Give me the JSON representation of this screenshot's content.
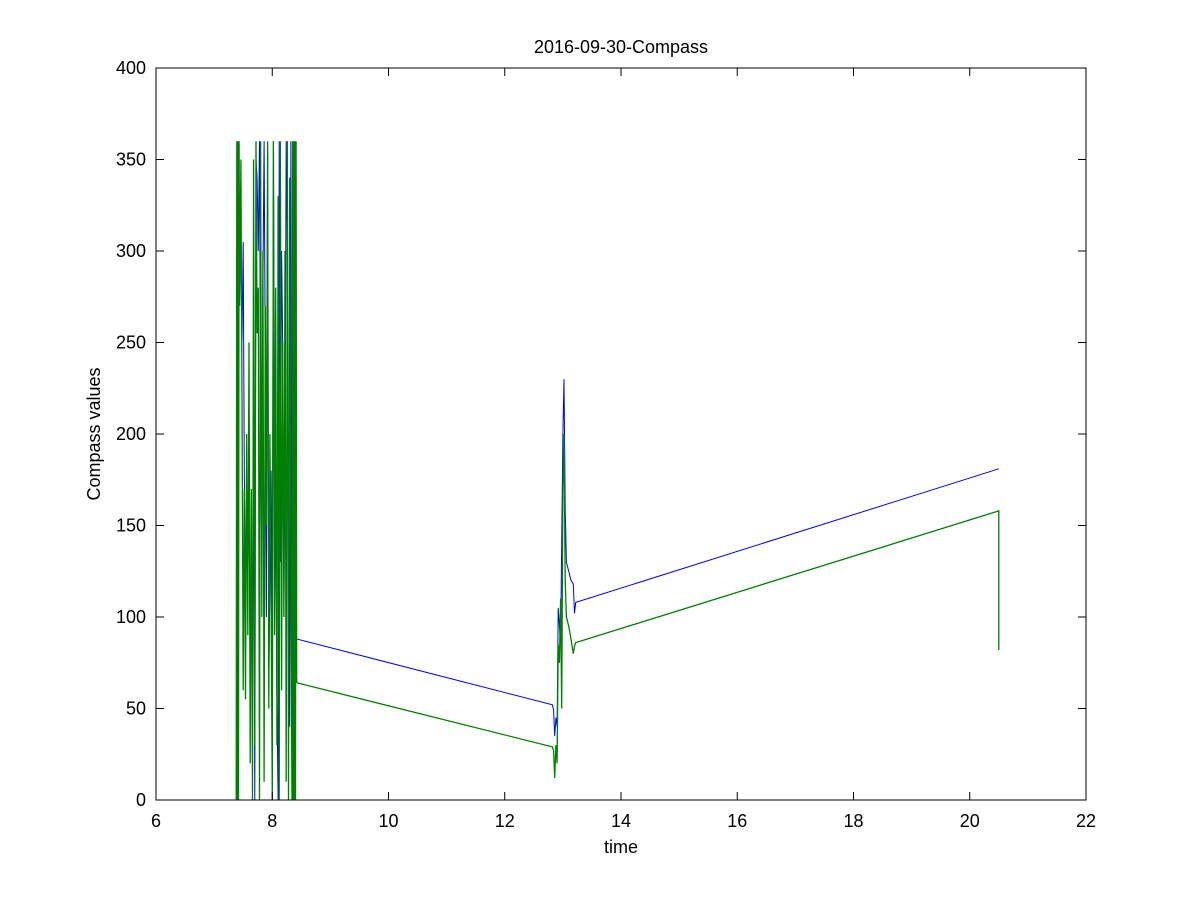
{
  "chart_data": {
    "type": "line",
    "title": "2016-09-30-Compass",
    "xlabel": "time",
    "ylabel": "Compass values",
    "xlim": [
      6,
      22
    ],
    "ylim": [
      0,
      400
    ],
    "xticks": [
      6,
      8,
      10,
      12,
      14,
      16,
      18,
      20,
      22
    ],
    "yticks": [
      0,
      50,
      100,
      150,
      200,
      250,
      300,
      350,
      400
    ],
    "grid": false,
    "legend": "none",
    "series": [
      {
        "color": "#0000ff",
        "x": [
          7.4,
          7.42,
          7.44,
          7.46,
          7.48,
          7.5,
          7.52,
          7.54,
          7.56,
          7.58,
          7.6,
          7.62,
          7.64,
          7.66,
          7.68,
          7.7,
          7.72,
          7.74,
          7.76,
          7.78,
          7.8,
          7.82,
          7.84,
          7.86,
          7.88,
          7.9,
          7.92,
          7.94,
          7.96,
          7.98,
          8.0,
          8.02,
          8.04,
          8.06,
          8.08,
          8.1,
          8.12,
          8.14,
          8.16,
          8.18,
          8.2,
          8.22,
          8.24,
          8.26,
          8.28,
          8.3,
          8.32,
          8.34,
          8.36,
          8.38,
          8.4,
          8.42,
          12.82,
          12.84,
          12.86,
          12.88,
          12.9,
          12.92,
          12.94,
          12.96,
          12.98,
          13.0,
          13.02,
          13.04,
          13.06,
          13.1,
          13.14,
          13.18,
          13.2,
          13.22,
          20.5,
          20.5
        ],
        "values": [
          0,
          360,
          290,
          300,
          250,
          305,
          180,
          100,
          190,
          120,
          170,
          60,
          150,
          30,
          200,
          0,
          350,
          340,
          300,
          360,
          200,
          130,
          280,
          360,
          240,
          100,
          355,
          60,
          120,
          180,
          90,
          360,
          210,
          150,
          60,
          0,
          360,
          130,
          300,
          250,
          100,
          190,
          360,
          290,
          120,
          40,
          360,
          0,
          350,
          0,
          90,
          88,
          52,
          49,
          35,
          45,
          40,
          105,
          95,
          85,
          140,
          200,
          230,
          160,
          130,
          125,
          120,
          118,
          102,
          108,
          181,
          181
        ]
      },
      {
        "color": "#008000",
        "x": [
          7.38,
          7.39,
          7.4,
          7.41,
          7.42,
          7.43,
          7.44,
          7.46,
          7.48,
          7.5,
          7.52,
          7.54,
          7.56,
          7.58,
          7.6,
          7.62,
          7.64,
          7.66,
          7.68,
          7.7,
          7.72,
          7.74,
          7.76,
          7.78,
          7.8,
          7.82,
          7.84,
          7.86,
          7.88,
          7.9,
          7.92,
          7.94,
          7.96,
          7.98,
          8.0,
          8.02,
          8.04,
          8.06,
          8.08,
          8.1,
          8.12,
          8.14,
          8.16,
          8.18,
          8.2,
          8.22,
          8.24,
          8.26,
          8.28,
          8.3,
          8.32,
          8.34,
          8.35,
          8.36,
          8.37,
          8.38,
          8.39,
          8.4,
          8.41,
          8.42,
          8.43,
          12.82,
          12.84,
          12.86,
          12.88,
          12.9,
          12.92,
          12.94,
          12.96,
          12.98,
          13.0,
          13.02,
          13.04,
          13.06,
          13.1,
          13.14,
          13.18,
          13.2,
          13.22,
          20.5,
          20.5
        ],
        "values": [
          0,
          360,
          0,
          360,
          0,
          360,
          270,
          350,
          220,
          60,
          170,
          55,
          200,
          90,
          250,
          20,
          170,
          0,
          350,
          30,
          360,
          255,
          280,
          0,
          360,
          100,
          300,
          10,
          270,
          150,
          360,
          50,
          200,
          110,
          0,
          360,
          90,
          280,
          30,
          330,
          0,
          360,
          60,
          250,
          100,
          300,
          10,
          360,
          0,
          340,
          120,
          0,
          360,
          0,
          360,
          0,
          360,
          0,
          360,
          65,
          64,
          29,
          27,
          12,
          30,
          20,
          85,
          75,
          110,
          50,
          170,
          200,
          120,
          100,
          95,
          88,
          80,
          84,
          86,
          158,
          82
        ]
      }
    ]
  }
}
